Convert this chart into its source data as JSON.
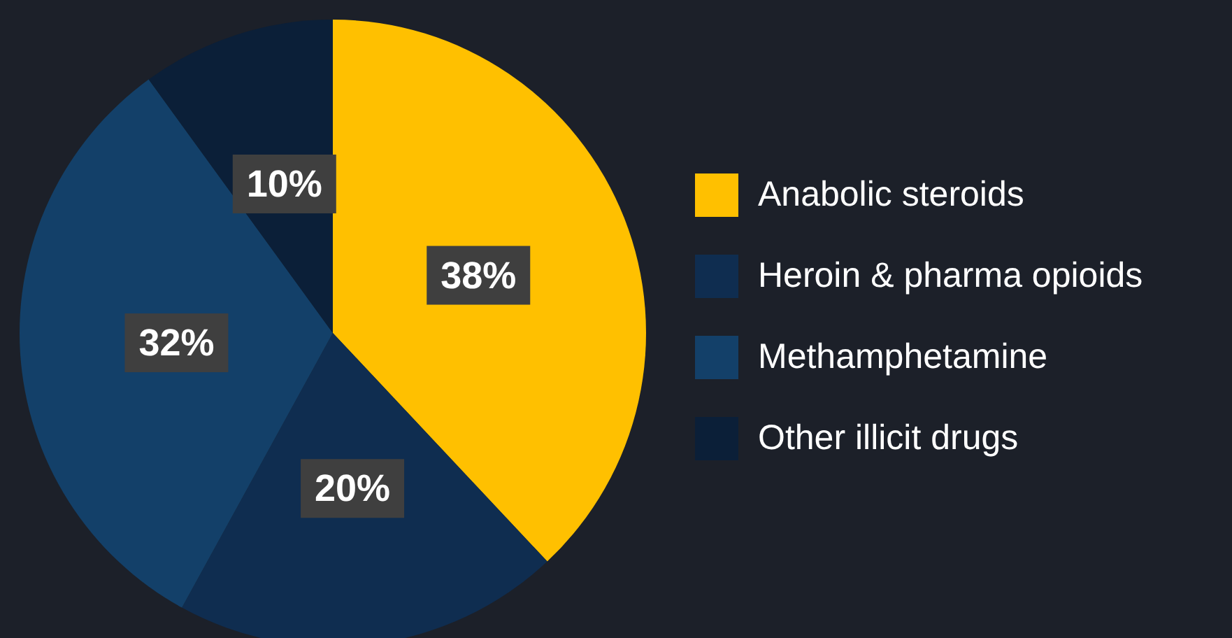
{
  "chart_data": {
    "type": "pie",
    "categories": [
      "Anabolic steroids",
      "Heroin & pharma opioids",
      "Methamphetamine",
      "Other illicit drugs"
    ],
    "values": [
      38,
      20,
      32,
      10
    ],
    "colors": [
      "#ffc000",
      "#0f2d50",
      "#134069",
      "#0b1f38"
    ],
    "value_labels": [
      "38%",
      "20%",
      "32%",
      "10%"
    ],
    "legend": "right"
  }
}
